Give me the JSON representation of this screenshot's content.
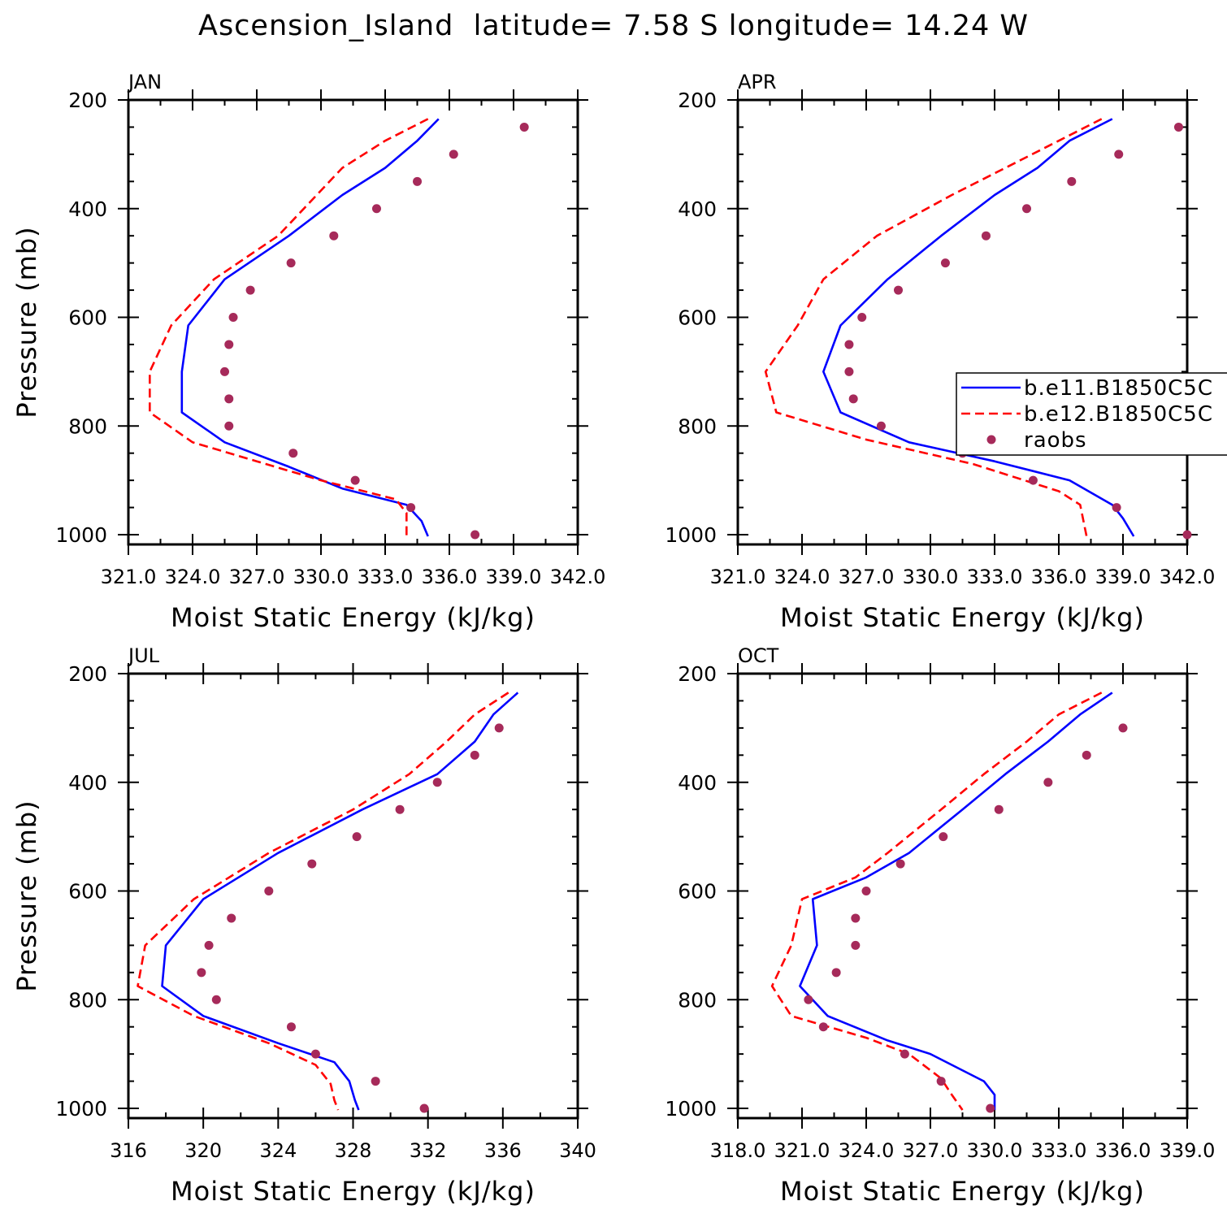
{
  "title": "Ascension_Island  latitude= 7.58 S longitude= 14.24 W",
  "colors": {
    "model1": "#0000ff",
    "model2": "#ff0000",
    "raobs": "#a62a5a",
    "axis": "#000000"
  },
  "legend": [
    "b.e11.B1850C5C",
    "b.e12.B1850C5C",
    "raobs"
  ],
  "chart_data": [
    {
      "type": "line",
      "panel": "JAN",
      "xlabel": "Moist Static Energy (kJ/kg)",
      "ylabel": "Pressure (mb)",
      "xlim": [
        321.0,
        342.0
      ],
      "xticks": [
        "321.0",
        "324.0",
        "327.0",
        "330.0",
        "333.0",
        "336.0",
        "339.0",
        "342.0"
      ],
      "ylim": [
        1000,
        200
      ],
      "yticks": [
        "200",
        "400",
        "600",
        "800",
        "1000"
      ],
      "grid": false,
      "series": [
        {
          "name": "b.e11.B1850C5C",
          "style": "solid",
          "x": [
            335.5,
            334.5,
            333.0,
            331.0,
            328.5,
            325.5,
            323.8,
            323.5,
            323.5,
            325.5,
            328.5,
            331.0,
            334.0,
            334.7,
            335.0
          ],
          "y": [
            235,
            275,
            325,
            375,
            450,
            530,
            615,
            700,
            775,
            830,
            875,
            915,
            945,
            975,
            1003
          ]
        },
        {
          "name": "b.e12.B1850C5C",
          "style": "dashed",
          "x": [
            335.0,
            333.0,
            331.0,
            328.0,
            325.0,
            323.0,
            322.0,
            322.0,
            324.0,
            327.0,
            330.0,
            333.5,
            334.0,
            334.0
          ],
          "y": [
            235,
            275,
            325,
            450,
            530,
            615,
            700,
            775,
            830,
            865,
            900,
            935,
            960,
            1003
          ]
        },
        {
          "name": "raobs",
          "style": "markers",
          "x": [
            339.5,
            336.2,
            334.5,
            332.6,
            330.6,
            328.6,
            326.7,
            325.9,
            325.7,
            325.5,
            325.7,
            325.7,
            328.7,
            331.6,
            334.2,
            337.2
          ],
          "y": [
            250,
            300,
            350,
            400,
            450,
            500,
            550,
            600,
            650,
            700,
            750,
            800,
            850,
            900,
            950,
            1000
          ]
        }
      ]
    },
    {
      "type": "line",
      "panel": "APR",
      "xlabel": "Moist Static Energy (kJ/kg)",
      "ylabel": "",
      "xlim": [
        321.0,
        342.0
      ],
      "xticks": [
        "321.0",
        "324.0",
        "327.0",
        "330.0",
        "333.0",
        "336.0",
        "339.0",
        "342.0"
      ],
      "ylim": [
        1000,
        200
      ],
      "yticks": [
        "200",
        "400",
        "600",
        "800",
        "1000"
      ],
      "grid": false,
      "series": [
        {
          "name": "b.e11.B1850C5C",
          "style": "solid",
          "x": [
            338.5,
            336.5,
            335.0,
            333.0,
            330.5,
            328.0,
            325.8,
            325.0,
            325.8,
            329.0,
            333.0,
            336.5,
            338.5,
            339.0,
            339.5
          ],
          "y": [
            235,
            275,
            325,
            375,
            450,
            530,
            615,
            700,
            775,
            830,
            865,
            900,
            945,
            970,
            1003
          ]
        },
        {
          "name": "b.e12.B1850C5C",
          "style": "dashed",
          "x": [
            338.0,
            336.0,
            333.5,
            331.0,
            327.5,
            325.0,
            323.8,
            322.3,
            322.8,
            327.0,
            332.0,
            336.0,
            337.0,
            337.3
          ],
          "y": [
            235,
            275,
            325,
            375,
            450,
            530,
            615,
            700,
            775,
            825,
            870,
            920,
            945,
            1003
          ]
        },
        {
          "name": "raobs",
          "style": "markers",
          "x": [
            341.6,
            338.8,
            336.6,
            334.5,
            332.6,
            330.7,
            328.5,
            326.8,
            326.2,
            326.2,
            326.4,
            327.7,
            331.5,
            334.8,
            338.7,
            342.0
          ],
          "y": [
            250,
            300,
            350,
            400,
            450,
            500,
            550,
            600,
            650,
            700,
            750,
            800,
            850,
            900,
            950,
            1000
          ]
        }
      ]
    },
    {
      "type": "line",
      "panel": "JUL",
      "xlabel": "Moist Static Energy (kJ/kg)",
      "ylabel": "Pressure (mb)",
      "xlim": [
        316,
        340
      ],
      "xticks": [
        "316",
        "320",
        "324",
        "328",
        "332",
        "336",
        "340"
      ],
      "ylim": [
        1000,
        200
      ],
      "yticks": [
        "200",
        "400",
        "600",
        "800",
        "1000"
      ],
      "grid": false,
      "series": [
        {
          "name": "b.e11.B1850C5C",
          "style": "solid",
          "x": [
            336.8,
            335.5,
            334.5,
            332.5,
            328.5,
            324.0,
            320.0,
            318.0,
            317.8,
            320.0,
            324.0,
            327.0,
            327.8,
            328.1,
            328.3
          ],
          "y": [
            235,
            275,
            325,
            385,
            450,
            530,
            615,
            700,
            775,
            830,
            880,
            915,
            950,
            985,
            1003
          ]
        },
        {
          "name": "b.e12.B1850C5C",
          "style": "dashed",
          "x": [
            336.3,
            334.5,
            333.0,
            331.0,
            328.0,
            323.5,
            319.5,
            316.9,
            316.5,
            319.5,
            323.5,
            326.0,
            326.8,
            327.0,
            327.2
          ],
          "y": [
            235,
            275,
            325,
            385,
            450,
            530,
            615,
            700,
            775,
            830,
            880,
            920,
            955,
            985,
            1003
          ]
        },
        {
          "name": "raobs",
          "style": "markers",
          "x": [
            335.8,
            334.5,
            332.5,
            330.5,
            328.2,
            325.8,
            323.5,
            321.5,
            320.3,
            319.9,
            320.7,
            324.7,
            326.0,
            329.2,
            331.8
          ],
          "y": [
            300,
            350,
            400,
            450,
            500,
            550,
            600,
            650,
            700,
            750,
            800,
            850,
            900,
            950,
            1000
          ]
        }
      ]
    },
    {
      "type": "line",
      "panel": "OCT",
      "xlabel": "Moist Static Energy (kJ/kg)",
      "ylabel": "",
      "xlim": [
        318.0,
        339.0
      ],
      "xticks": [
        "318.0",
        "321.0",
        "324.0",
        "327.0",
        "330.0",
        "333.0",
        "336.0",
        "339.0"
      ],
      "ylim": [
        1000,
        200
      ],
      "yticks": [
        "200",
        "400",
        "600",
        "800",
        "1000"
      ],
      "grid": false,
      "series": [
        {
          "name": "b.e11.B1850C5C",
          "style": "solid",
          "x": [
            335.5,
            334.0,
            332.5,
            330.5,
            328.5,
            326.0,
            324.0,
            321.5,
            321.7,
            320.9,
            322.2,
            325.0,
            327.0,
            329.5,
            330.0,
            330.0
          ],
          "y": [
            235,
            275,
            325,
            385,
            450,
            530,
            575,
            615,
            700,
            775,
            830,
            875,
            900,
            950,
            975,
            1003
          ]
        },
        {
          "name": "b.e12.B1850C5C",
          "style": "dashed",
          "x": [
            335.0,
            333.0,
            331.5,
            329.5,
            327.5,
            325.0,
            323.5,
            321.0,
            320.5,
            319.6,
            320.5,
            324.0,
            326.0,
            327.5,
            328.0,
            328.5
          ],
          "y": [
            235,
            275,
            325,
            385,
            450,
            530,
            575,
            615,
            700,
            775,
            830,
            870,
            900,
            945,
            975,
            1003
          ]
        },
        {
          "name": "raobs",
          "style": "markers",
          "x": [
            336.0,
            334.3,
            332.5,
            330.2,
            327.6,
            325.6,
            324.0,
            323.5,
            323.5,
            322.6,
            321.3,
            322.0,
            325.8,
            327.5,
            329.8
          ],
          "y": [
            300,
            350,
            400,
            450,
            500,
            550,
            600,
            650,
            700,
            750,
            800,
            850,
            900,
            950,
            1000
          ]
        }
      ]
    }
  ]
}
